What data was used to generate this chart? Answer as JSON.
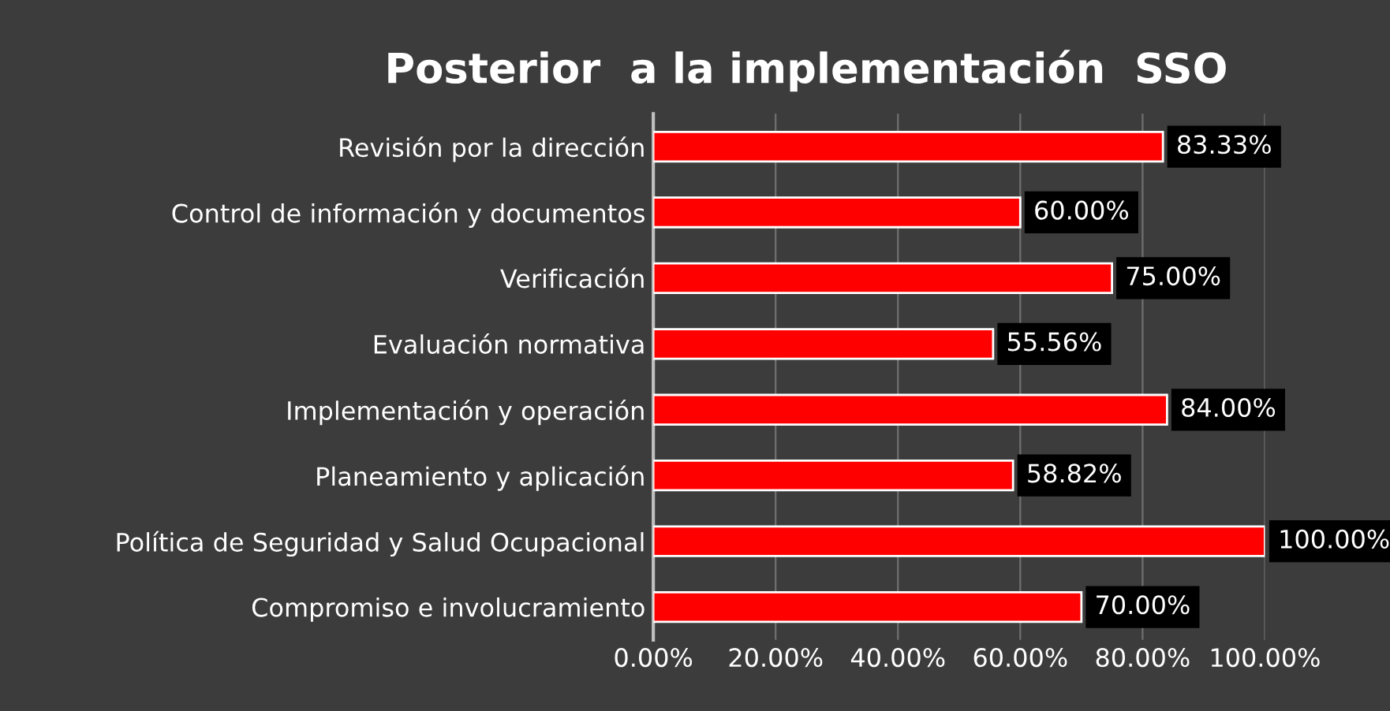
{
  "chart_data": {
    "type": "bar",
    "orientation": "horizontal",
    "title": "Posterior  a la implementación  SSO",
    "categories": [
      "Revisión por la dirección",
      "Control de información y documentos",
      "Verificación",
      "Evaluación normativa",
      "Implementación y operación",
      "Planeamiento y aplicación",
      "Política de Seguridad y Salud Ocupacional",
      "Compromiso e involucramiento"
    ],
    "values": [
      83.33,
      60.0,
      75.0,
      55.56,
      84.0,
      58.82,
      100.0,
      70.0
    ],
    "value_labels": [
      "83.33%",
      "60.00%",
      "75.00%",
      "55.56%",
      "84.00%",
      "58.82%",
      "100.00%",
      "70.00%"
    ],
    "color": "#ff0000",
    "xlim": [
      0,
      100
    ],
    "xticks": [
      {
        "value": 0,
        "label": "0.00%"
      },
      {
        "value": 20,
        "label": "20.00%"
      },
      {
        "value": 40,
        "label": "40.00%"
      },
      {
        "value": 60,
        "label": "60.00%"
      },
      {
        "value": 80,
        "label": "80.00%"
      },
      {
        "value": 100,
        "label": "100.00%"
      }
    ],
    "grid": "x"
  }
}
